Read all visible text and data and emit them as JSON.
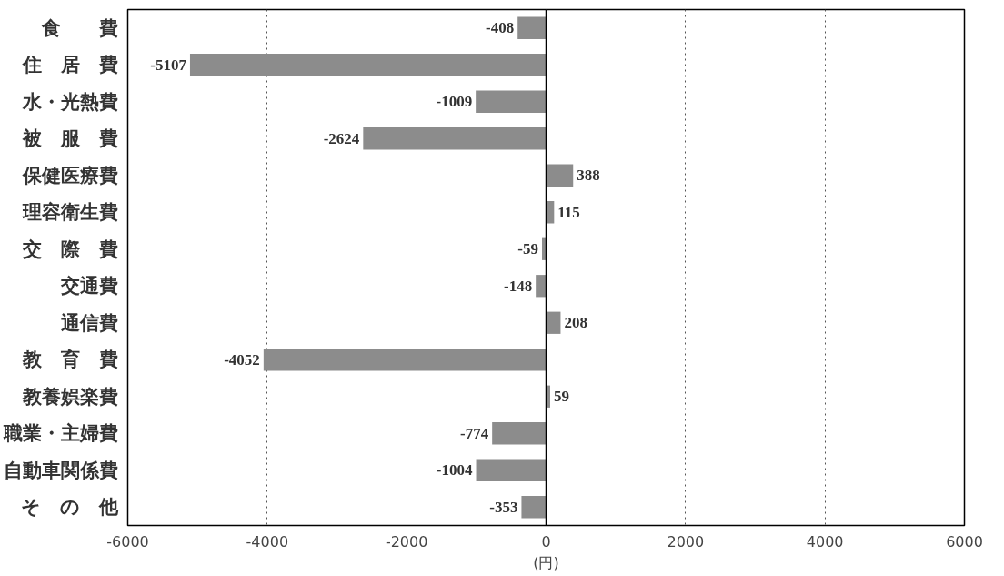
{
  "chart_data": {
    "type": "bar",
    "orientation": "horizontal",
    "xlabel": "(円)",
    "categories": [
      "食　　費",
      "住　居　費",
      "水・光熱費",
      "被　服　費",
      "保健医療費",
      "理容衛生費",
      "交　際　費",
      "交通費",
      "通信費",
      "教　育　費",
      "教養娯楽費",
      "職業・主婦費",
      "自動車関係費",
      "そ　の　他"
    ],
    "values": [
      -408,
      -5107,
      -1009,
      -2624,
      388,
      115,
      -59,
      -148,
      208,
      -4052,
      59,
      -774,
      -1004,
      -353
    ],
    "color": "#8c8c8c",
    "xlim": [
      -6000,
      6000
    ],
    "xticks": [
      -6000,
      -4000,
      -2000,
      0,
      2000,
      4000,
      6000
    ],
    "grid": "x",
    "data_labels": true,
    "ref_lines": [
      {
        "axis": "x",
        "value": 0,
        "color": "#000000"
      }
    ]
  }
}
